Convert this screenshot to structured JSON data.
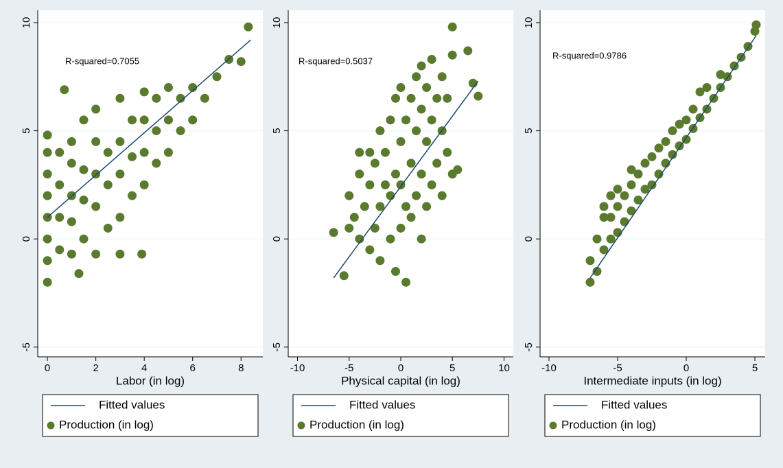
{
  "chart_data": [
    {
      "type": "scatter",
      "annotation": "R-squared=0.7055",
      "xlabel": "Labor (in log)",
      "xlim": [
        -0.4,
        8.9
      ],
      "xticks": [
        0,
        2,
        4,
        6,
        8
      ],
      "ylim": [
        -5.45,
        10.57
      ],
      "yticks": [
        -5,
        0,
        5,
        10
      ],
      "grid": true,
      "series": [
        {
          "name": "Fitted values",
          "type": "line",
          "color": "#1a476f",
          "x": [
            0,
            8.4
          ],
          "values": [
            1.0,
            9.2
          ]
        },
        {
          "name": "Production (in log)",
          "color": "#5a7a2e",
          "x": [
            0,
            0,
            0,
            0,
            0,
            0,
            0,
            0,
            0.5,
            0.5,
            0.5,
            0.5,
            1,
            1,
            1,
            1,
            1,
            1.5,
            1.5,
            1.5,
            1.5,
            2,
            2,
            2,
            2,
            2,
            2.5,
            2.5,
            2.5,
            3,
            3,
            3,
            3,
            3.5,
            3.5,
            3.5,
            4,
            4,
            4,
            4,
            4.5,
            4.5,
            4.5,
            5,
            5,
            5,
            5.5,
            5.5,
            6,
            6,
            6.5,
            7,
            7.5,
            8,
            8.3,
            0.7,
            3.9,
            3,
            1.3
          ],
          "values": [
            -2,
            -1,
            0,
            1,
            2,
            3,
            4,
            4.8,
            -0.5,
            1,
            2.5,
            4,
            -0.7,
            0.8,
            2,
            3.5,
            4.5,
            0,
            1.8,
            3.2,
            5.5,
            -0.7,
            1.5,
            3,
            4.5,
            6,
            0.5,
            2.5,
            4,
            1,
            3,
            4.5,
            6.5,
            2,
            3.8,
            5.5,
            2.5,
            4,
            5.5,
            6.8,
            3.5,
            5,
            6.5,
            4,
            5.5,
            7,
            5,
            6.5,
            5.5,
            7,
            6.5,
            7.5,
            8.3,
            8.2,
            9.8,
            6.9,
            -0.7,
            -0.7,
            -1.6
          ]
        }
      ]
    },
    {
      "type": "scatter",
      "annotation": "R-squared=0.5037",
      "xlabel": "Physical capital (in log)",
      "xlim": [
        -10.9,
        10.9
      ],
      "xticks": [
        -10,
        -5,
        0,
        5,
        10
      ],
      "ylim": [
        -5.45,
        10.57
      ],
      "yticks": [
        -5,
        0,
        5,
        10
      ],
      "grid": true,
      "series": [
        {
          "name": "Fitted values",
          "type": "line",
          "color": "#1a476f",
          "x": [
            -6.5,
            7.5
          ],
          "values": [
            -1.8,
            7.3
          ]
        },
        {
          "name": "Production (in log)",
          "color": "#5a7a2e",
          "x": [
            -6.5,
            -5.5,
            -5,
            -5,
            -4.5,
            -4,
            -4,
            -4,
            -3.5,
            -3,
            -3,
            -3,
            -2.5,
            -2.5,
            -2,
            -2,
            -2,
            -1.5,
            -1.5,
            -1,
            -1,
            -1,
            -0.5,
            -0.5,
            -0.5,
            0,
            0,
            0,
            0,
            0.5,
            0.5,
            0.5,
            1,
            1,
            1,
            1.5,
            1.5,
            1.5,
            2,
            2,
            2,
            2,
            2.5,
            2.5,
            2.5,
            3,
            3,
            3,
            3.5,
            3.5,
            4,
            4,
            4,
            4.5,
            4.5,
            5,
            5,
            5,
            5.5,
            6.5,
            7,
            7.5
          ],
          "values": [
            0.3,
            -1.7,
            0.5,
            2,
            1,
            0,
            3,
            4,
            1.5,
            -0.5,
            2.5,
            4,
            0.5,
            3.5,
            -1,
            1.5,
            5,
            2.5,
            4,
            0,
            2,
            5.5,
            -1.5,
            3,
            6.5,
            0.5,
            2.5,
            4.5,
            7,
            -2,
            1.5,
            5.5,
            1,
            3.5,
            6.5,
            2,
            5,
            7.5,
            0,
            3,
            6,
            8,
            1.5,
            4.5,
            7,
            2.5,
            5.5,
            8.3,
            3.5,
            6.5,
            2,
            5,
            7.5,
            4,
            6.5,
            3,
            8.5,
            9.8,
            3.2,
            8.7,
            7.2,
            6.6
          ]
        }
      ]
    },
    {
      "type": "scatter",
      "annotation": "R-squared=0.9786",
      "xlabel": "Intermediate inputs (in log)",
      "xlim": [
        -10.65,
        5.75
      ],
      "xticks": [
        -10,
        -5,
        0,
        5
      ],
      "ylim": [
        -5.45,
        10.57
      ],
      "yticks": [
        -5,
        0,
        5,
        10
      ],
      "grid": true,
      "series": [
        {
          "name": "Fitted values",
          "type": "line",
          "color": "#1a476f",
          "x": [
            -7,
            5.1
          ],
          "values": [
            -1.8,
            9.4
          ]
        },
        {
          "name": "Production (in log)",
          "color": "#5a7a2e",
          "x": [
            -7,
            -7,
            -6.5,
            -6.5,
            -6,
            -6,
            -6,
            -5.5,
            -5.5,
            -5.5,
            -5,
            -5,
            -5,
            -4.5,
            -4.5,
            -4,
            -4,
            -4,
            -3.5,
            -3.5,
            -3,
            -3,
            -2.5,
            -2.5,
            -2,
            -2,
            -1.5,
            -1.5,
            -1,
            -1,
            -0.5,
            -0.5,
            0,
            0,
            0.5,
            0.5,
            1,
            1,
            1.5,
            1.5,
            2,
            2.5,
            2.5,
            3,
            3.5,
            4,
            4.5,
            5,
            5.1
          ],
          "values": [
            -2,
            -1,
            -1.5,
            0,
            -0.5,
            1,
            1.5,
            0,
            1,
            2,
            0.3,
            1.5,
            2.3,
            0.8,
            2,
            1.3,
            2.5,
            3.2,
            1.8,
            3,
            2.3,
            3.5,
            2.5,
            3.8,
            3,
            4.2,
            3.5,
            4.5,
            3.9,
            5,
            4.3,
            5.3,
            4.6,
            5.5,
            5.1,
            6,
            5.6,
            6.8,
            6,
            7,
            6.5,
            7,
            7.6,
            7.5,
            8,
            8.4,
            8.9,
            9.6,
            9.9
          ]
        }
      ]
    }
  ]
}
